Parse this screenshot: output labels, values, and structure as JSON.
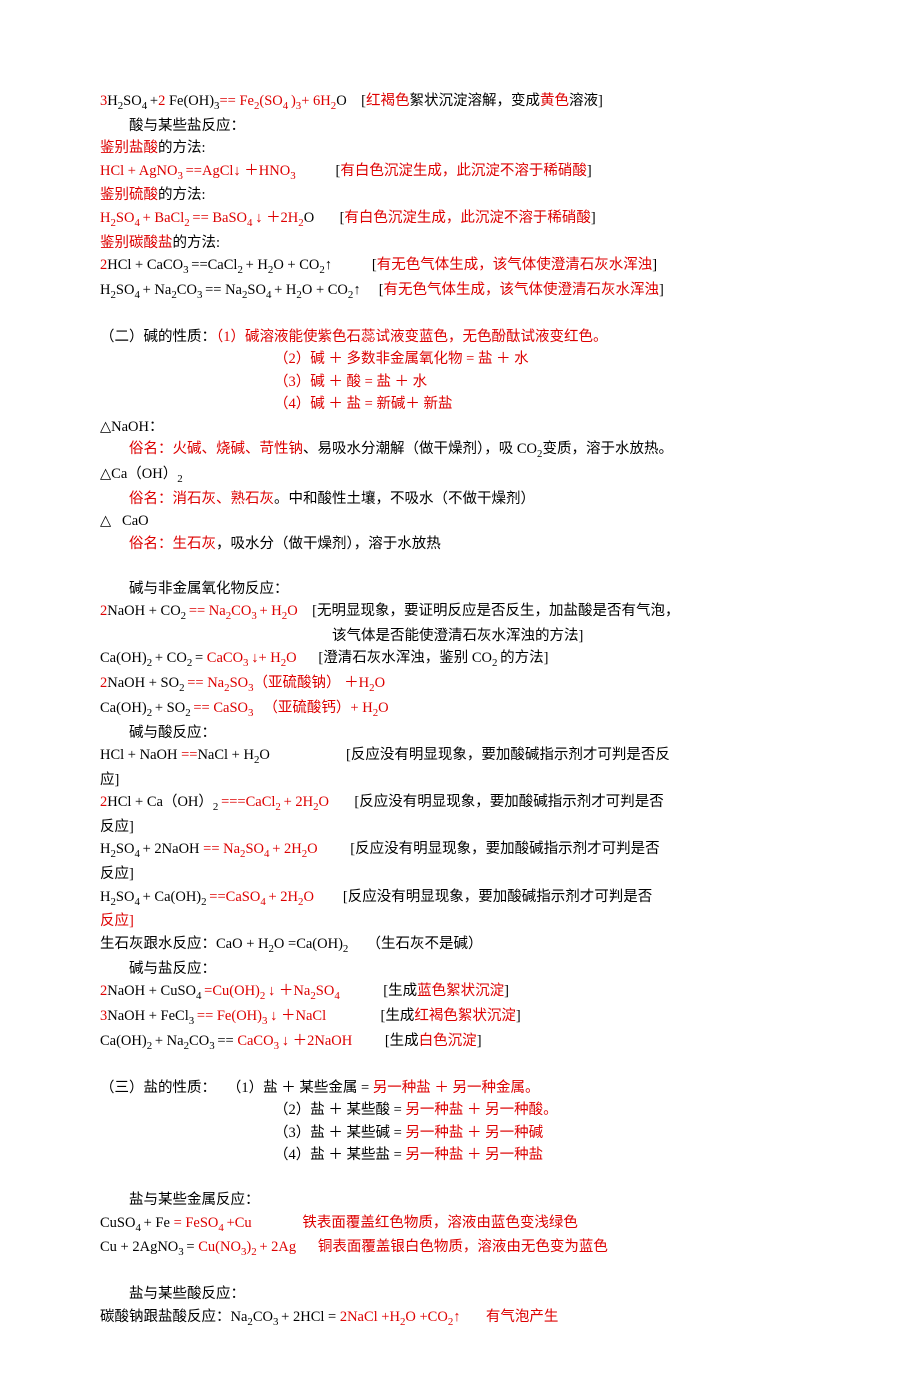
{
  "doc": {
    "L1_a": "3",
    "L1_b": "H",
    "L1_c": "2",
    "L1_d": "SO",
    "L1_e": "4 ",
    "L1_f": "+",
    "L1_g": "2 ",
    "L1_h": "Fe(OH)",
    "L1_i": "3",
    "L1_j": "== Fe",
    "L1_k": "2",
    "L1_l": "(SO",
    "L1_m": "4 ",
    "L1_n": ")",
    "L1_o": "3",
    "L1_p": "+ 6H",
    "L1_q": "2",
    "L1_r": "O    [",
    "L1_s": "红褐色",
    "L1_t": "絮状沉淀溶解，变成",
    "L1_u": "黄色",
    "L1_v": "溶液]",
    "L2": "酸与某些盐反应：",
    "L3_a": "鉴别盐酸",
    "L3_b": "的方法:",
    "L4_a": "HCl + AgNO",
    "L4_b": "3 ",
    "L4_c": "==AgCl↓ ＋HNO",
    "L4_d": "3",
    "L4_e": "           [",
    "L4_f": "有白色沉淀生成，此沉淀不溶于稀硝酸",
    "L4_g": "]",
    "L5_a": "鉴别硫酸",
    "L5_b": "的方法:",
    "L6_a": "H",
    "L6_b": "2",
    "L6_c": "SO",
    "L6_d": "4 ",
    "L6_e": "+ BaCl",
    "L6_f": "2 ",
    "L6_g": "== BaSO",
    "L6_h": "4 ",
    "L6_i": "↓ ＋2H",
    "L6_j": "2",
    "L6_k": "O       [",
    "L6_l": "有白色沉淀生成，此沉淀不溶于稀硝酸",
    "L6_m": "]",
    "L7_a": "鉴别碳酸盐",
    "L7_b": "的方法:",
    "L8_a": "2",
    "L8_b": "HCl + CaCO",
    "L8_c": "3 ",
    "L8_d": "==CaCl",
    "L8_e": "2 ",
    "L8_f": "+ H",
    "L8_g": "2",
    "L8_h": "O + CO",
    "L8_i": "2",
    "L8_j": "↑           [",
    "L8_k": "有无色气体生成，该气体使澄清石灰水浑浊",
    "L8_l": "]",
    "L9_a": "H",
    "L9_b": "2",
    "L9_c": "SO",
    "L9_d": "4 ",
    "L9_e": "+ Na",
    "L9_f": "2",
    "L9_g": "CO",
    "L9_h": "3 ",
    "L9_i": "== Na",
    "L9_j": "2",
    "L9_k": "SO",
    "L9_l": "4 ",
    "L9_m": "+ H",
    "L9_n": "2",
    "L9_o": "O + CO",
    "L9_p": "2",
    "L9_q": "↑     [",
    "L9_r": "有无色气体生成，该气体使澄清石灰水浑浊",
    "L9_s": "]",
    "L11_a": "（二）碱的性质：",
    "L11_b": "（1）碱溶液能使紫色石蕊试液变蓝色，无色酚酞试液变红色。",
    "L12_a": "（2）碱 ＋ 多数非金属氧化物 ",
    "L12_b": "= ",
    "L12_c": "盐 ＋ 水",
    "L13_a": "（3）碱 ＋ 酸 ",
    "L13_b": "= ",
    "L13_c": "盐 ＋ 水",
    "L14_a": "（4）碱 ＋ 盐 ",
    "L14_b": "= ",
    "L14_c": "新碱＋ 新盐",
    "L15": "△NaOH：",
    "L16_a": "俗名：火碱、烧碱、苛性钠",
    "L16_b": "、易吸水分潮解（做干燥剂），吸 CO",
    "L16_c": "2",
    "L16_d": "变质，溶于水放热。",
    "L17_a": "△Ca（OH）",
    "L17_b": "2",
    "L18_a": "俗名：消石灰、熟石灰",
    "L18_b": "。中和酸性土壤，不吸水（不做干燥剂）",
    "L19": "△   CaO",
    "L20_a": "俗名：生石灰",
    "L20_b": "，吸水分（做干燥剂），溶于水放热",
    "L22": "碱与非金属氧化物反应：",
    "L23_a": "2",
    "L23_b": "NaOH + CO",
    "L23_c": "2 ",
    "L23_d": "== Na",
    "L23_e": "2",
    "L23_f": "CO",
    "L23_g": "3 ",
    "L23_h": "+ H",
    "L23_i": "2",
    "L23_j": "O",
    "L23_k": "    [无明显现象，要证明反应是否反生，加盐酸是否有气泡，",
    "L24": "该气体是否能使澄清石灰水浑浊的方法]",
    "L25_a": "Ca(OH)",
    "L25_b": "2 ",
    "L25_c": "+ CO",
    "L25_d": "2 ",
    "L25_e": "= ",
    "L25_f": "CaCO",
    "L25_g": "3 ",
    "L25_h": "↓+ H",
    "L25_i": "2",
    "L25_j": "O",
    "L25_k": "      [澄清石灰水浑浊，鉴别 CO",
    "L25_l": "2 ",
    "L25_m": "的方法]",
    "L26_a": "2",
    "L26_b": "NaOH + SO",
    "L26_c": "2 ",
    "L26_d": "== Na",
    "L26_e": "2",
    "L26_f": "SO",
    "L26_g": "3",
    "L26_h": "（亚硫酸钠） ＋H",
    "L26_i": "2",
    "L26_j": "O",
    "L27_a": "Ca(OH)",
    "L27_b": "2 ",
    "L27_c": "+ SO",
    "L27_d": "2 ",
    "L27_e": "== CaSO",
    "L27_f": "3 ",
    "L27_g": "  （亚硫酸钙）+ H",
    "L27_h": "2",
    "L27_i": "O",
    "L28": "碱与酸反应：",
    "L29_a": "HCl + NaOH ",
    "L29_b": "==",
    "L29_c": "NaCl + H",
    "L29_d": "2",
    "L29_e": "O                     [反应没有明显现象，要加酸碱指示剂才可判是否反",
    "L29_f": "应]",
    "L30_a": "2",
    "L30_b": "HCl + Ca（OH）",
    "L30_c": "2 ",
    "L30_d": "===",
    "L30_e": "CaCl",
    "L30_f": "2 ",
    "L30_g": "+ 2H",
    "L30_h": "2",
    "L30_i": "O",
    "L30_j": "       [反应没有明显现象，要加酸碱指示剂才可判是否",
    "L30_k": "反应]",
    "L31_a": "H",
    "L31_b": "2",
    "L31_c": "SO",
    "L31_d": "4 ",
    "L31_e": "+ 2NaOH ",
    "L31_f": "== Na",
    "L31_g": "2",
    "L31_h": "SO",
    "L31_i": "4 ",
    "L31_j": "+ 2H",
    "L31_k": "2",
    "L31_l": "O",
    "L31_m": "         [反应没有明显现象，要加酸碱指示剂才可判是否",
    "L31_n": "反应]",
    "L32_a": "H",
    "L32_b": "2",
    "L32_c": "SO",
    "L32_d": "4 ",
    "L32_e": "+ Ca(OH)",
    "L32_f": "2 ",
    "L32_g": "==",
    "L32_h": "CaSO",
    "L32_i": "4 ",
    "L32_j": "+ 2H",
    "L32_k": "2",
    "L32_l": "O",
    "L32_m": "        [反应没有明显现象，要加酸碱指示剂才可判是否",
    "L32_n": "反应]",
    "L33_a": "生石灰跟水反应：CaO + H",
    "L33_b": "2",
    "L33_c": "O =Ca(OH)",
    "L33_d": "2",
    "L33_e": "     （生石灰不是碱）",
    "L34": "碱与盐反应：",
    "L35_a": "2",
    "L35_b": "NaOH + CuSO",
    "L35_c": "4 ",
    "L35_d": "=",
    "L35_e": "Cu(OH)",
    "L35_f": "2 ",
    "L35_g": "↓ ＋Na",
    "L35_h": "2",
    "L35_i": "SO",
    "L35_j": "4",
    "L35_k": "            [生成",
    "L35_l": "蓝色絮状沉淀",
    "L35_m": "]",
    "L36_a": "3",
    "L36_b": "NaOH + FeCl",
    "L36_c": "3 ",
    "L36_d": "== Fe(OH)",
    "L36_e": "3 ",
    "L36_f": "↓ ＋NaCl",
    "L36_g": "               [生成",
    "L36_h": "红褐色絮状沉淀",
    "L36_i": "]",
    "L37_a": "Ca(OH)",
    "L37_b": "2 ",
    "L37_c": "+ Na",
    "L37_d": "2",
    "L37_e": "CO",
    "L37_f": "3 ",
    "L37_g": "== ",
    "L37_h": "CaCO",
    "L37_i": "3 ",
    "L37_j": "↓ ＋2NaOH",
    "L37_k": "         [生成",
    "L37_l": "白色沉淀",
    "L37_m": "]",
    "L39_a": "（三）盐的性质：",
    "L39_b": "   （1）盐 ＋ 某些金属 = ",
    "L39_c": "另一种盐 ＋ 另一种金属。",
    "L40_a": "（2）盐 ＋ 某些酸 = ",
    "L40_b": "另一种盐 ＋ 另一种酸。",
    "L41_a": "（3）盐 ＋ 某些碱 = ",
    "L41_b": "另一种盐 ＋ 另一种碱",
    "L42_a": "（4）盐 ＋ 某些盐 = ",
    "L42_b": "另一种盐 ＋ 另一种盐",
    "L44": "盐与某些金属反应：",
    "L45_a": "CuSO",
    "L45_b": "4 ",
    "L45_c": "+ Fe ",
    "L45_d": "= FeSO",
    "L45_e": "4 ",
    "L45_f": "+Cu",
    "L45_g": "              铁表面覆盖红色物质，溶液由蓝色变浅绿色",
    "L46_a": "Cu + 2AgNO",
    "L46_b": "3 ",
    "L46_c": "= ",
    "L46_d": "Cu(NO",
    "L46_e": "3",
    "L46_f": ")",
    "L46_g": "2 ",
    "L46_h": "+ 2Ag",
    "L46_i": "      铜表面覆盖银白色物质，溶液由无色变为蓝色",
    "L48": "盐与某些酸反应：",
    "L49_a": "碳酸钠跟盐酸反应：Na",
    "L49_b": "2",
    "L49_c": "CO",
    "L49_d": "3 ",
    "L49_e": "+ 2HCl = ",
    "L49_f": "2NaCl +H",
    "L49_g": "2",
    "L49_h": "O +CO",
    "L49_i": "2",
    "L49_j": "↑       有气泡产生"
  }
}
